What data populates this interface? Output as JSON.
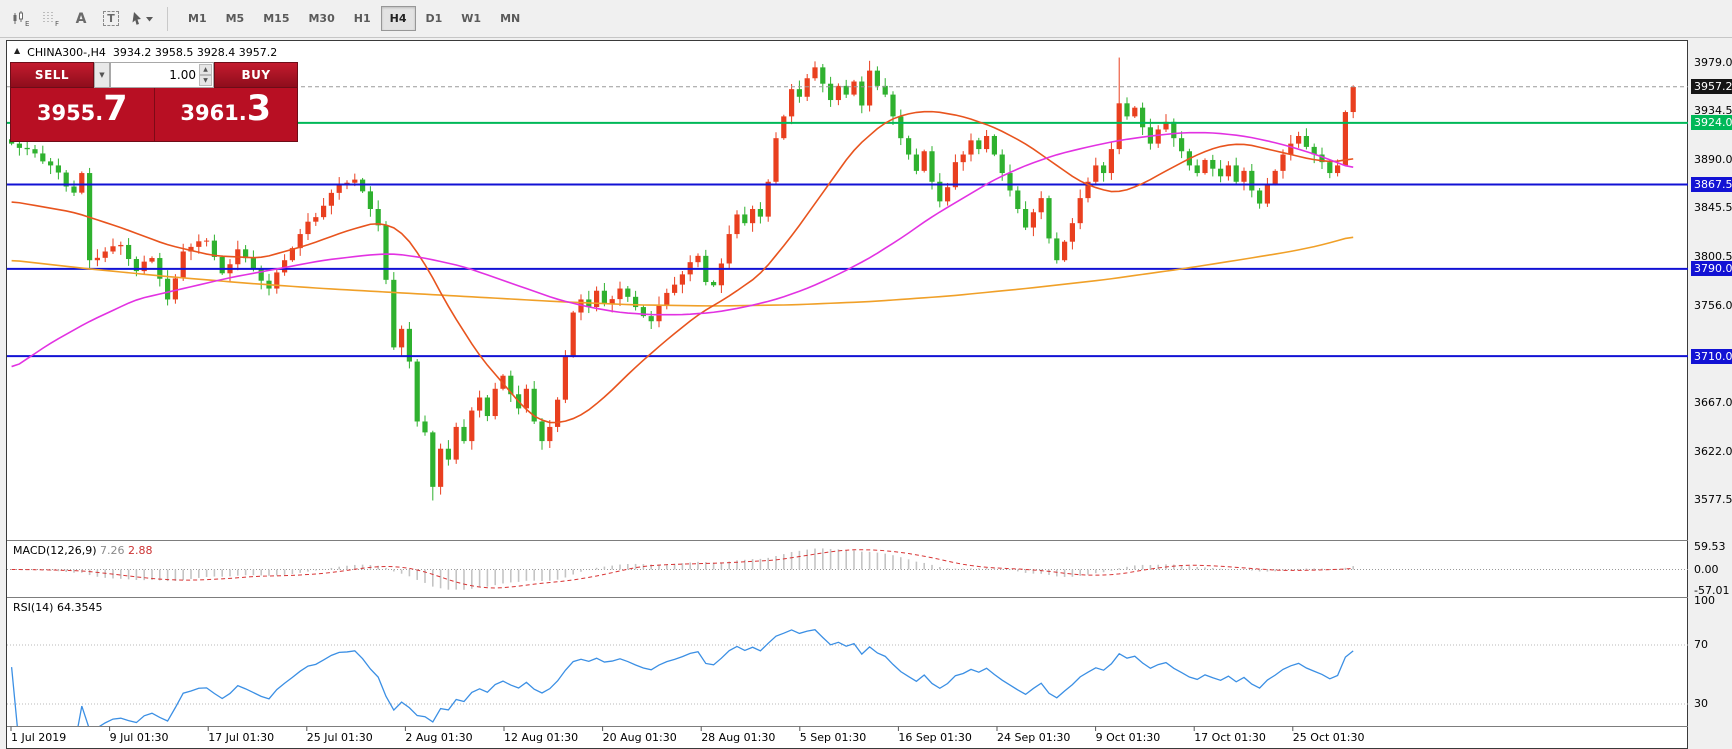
{
  "toolbar": {
    "icons": [
      {
        "name": "chart-style-icon",
        "sub": "E"
      },
      {
        "name": "grid-icon",
        "sub": "F"
      },
      {
        "name": "text-annotation-icon",
        "glyph": "A"
      },
      {
        "name": "text-box-icon",
        "glyph": "T"
      },
      {
        "name": "cursor-tool-icon"
      }
    ],
    "timeframes": [
      "M1",
      "M5",
      "M15",
      "M30",
      "H1",
      "H4",
      "D1",
      "W1",
      "MN"
    ],
    "active_timeframe": "H4"
  },
  "symbol_header": {
    "collapse_icon": "▲",
    "symbol": "CHINA300-,H4",
    "ohlc": "3934.2 3958.5 3928.4 3957.2"
  },
  "trade_panel": {
    "sell_label": "SELL",
    "buy_label": "BUY",
    "volume": "1.00",
    "sell_price_main": "3955.",
    "sell_price_big": "7",
    "buy_price_main": "3961.",
    "buy_price_big": "3"
  },
  "price_axis": {
    "labels": [
      {
        "text": "3979.0",
        "price": 3979.0
      },
      {
        "text": "3934.5",
        "price": 3934.5
      },
      {
        "text": "3890.0",
        "price": 3890.0
      },
      {
        "text": "3845.5",
        "price": 3845.5
      },
      {
        "text": "3800.5",
        "price": 3800.5
      },
      {
        "text": "3756.0",
        "price": 3756.0
      },
      {
        "text": "3667.0",
        "price": 3667.0
      },
      {
        "text": "3622.0",
        "price": 3622.0
      },
      {
        "text": "3577.5",
        "price": 3577.5
      }
    ],
    "tags": [
      {
        "text": "3957.2",
        "price": 3957.2,
        "style": "current"
      },
      {
        "text": "3924.0",
        "price": 3924.0,
        "style": "green"
      },
      {
        "text": "3867.5",
        "price": 3867.5,
        "style": "blue"
      },
      {
        "text": "3790.0",
        "price": 3790.0,
        "style": "blue"
      },
      {
        "text": "3710.0",
        "price": 3710.0,
        "style": "blue"
      }
    ]
  },
  "macd_panel": {
    "label": "MACD(12,26,9)",
    "value_main": "7.26",
    "value_signal": "2.88",
    "axis": [
      {
        "text": "59.53",
        "value": 59.53
      },
      {
        "text": "0.00",
        "value": 0
      },
      {
        "text": "-57.01",
        "value": -57.01
      }
    ]
  },
  "rsi_panel": {
    "label": "RSI(14)",
    "value": "64.3545",
    "axis": [
      {
        "text": "100",
        "value": 100
      },
      {
        "text": "70",
        "value": 70
      },
      {
        "text": "30",
        "value": 30
      }
    ],
    "levels": [
      70,
      30
    ]
  },
  "time_axis": {
    "labels": [
      "1 Jul 2019",
      "9 Jul 01:30",
      "17 Jul 01:30",
      "25 Jul 01:30",
      "2 Aug 01:30",
      "12 Aug 01:30",
      "20 Aug 01:30",
      "28 Aug 01:30",
      "5 Sep 01:30",
      "16 Sep 01:30",
      "24 Sep 01:30",
      "9 Oct 01:30",
      "17 Oct 01:30",
      "25 Oct 01:30"
    ]
  },
  "chart_data": {
    "type": "candlestick",
    "symbol": "CHINA300-",
    "timeframe": "H4",
    "last_ohlc": {
      "open": 3934.2,
      "high": 3958.5,
      "low": 3928.4,
      "close": 3957.2
    },
    "current_price": 3957.2,
    "candle_count": 173,
    "up_color": "#e93f1f",
    "down_color": "#2fb12f",
    "close_anchors": [
      [
        0,
        3905
      ],
      [
        3,
        3896
      ],
      [
        5,
        3885
      ],
      [
        8,
        3860
      ],
      [
        9,
        3878
      ],
      [
        10,
        3798
      ],
      [
        12,
        3806
      ],
      [
        14,
        3812
      ],
      [
        16,
        3788
      ],
      [
        18,
        3800
      ],
      [
        20,
        3762
      ],
      [
        22,
        3806
      ],
      [
        25,
        3816
      ],
      [
        27,
        3786
      ],
      [
        29,
        3808
      ],
      [
        31,
        3790
      ],
      [
        33,
        3772
      ],
      [
        35,
        3798
      ],
      [
        37,
        3822
      ],
      [
        40,
        3848
      ],
      [
        42,
        3868
      ],
      [
        44,
        3872
      ],
      [
        46,
        3845
      ],
      [
        47,
        3830
      ],
      [
        48,
        3780
      ],
      [
        49,
        3718
      ],
      [
        50,
        3735
      ],
      [
        51,
        3705
      ],
      [
        52,
        3650
      ],
      [
        53,
        3640
      ],
      [
        54,
        3590
      ],
      [
        55,
        3625
      ],
      [
        56,
        3615
      ],
      [
        57,
        3645
      ],
      [
        58,
        3632
      ],
      [
        59,
        3660
      ],
      [
        60,
        3672
      ],
      [
        61,
        3655
      ],
      [
        62,
        3680
      ],
      [
        63,
        3692
      ],
      [
        64,
        3675
      ],
      [
        65,
        3662
      ],
      [
        66,
        3680
      ],
      [
        67,
        3650
      ],
      [
        68,
        3632
      ],
      [
        69,
        3645
      ],
      [
        70,
        3670
      ],
      [
        71,
        3710
      ],
      [
        72,
        3750
      ],
      [
        73,
        3762
      ],
      [
        74,
        3755
      ],
      [
        75,
        3770
      ],
      [
        76,
        3758
      ],
      [
        78,
        3772
      ],
      [
        80,
        3755
      ],
      [
        82,
        3742
      ],
      [
        84,
        3768
      ],
      [
        86,
        3785
      ],
      [
        88,
        3802
      ],
      [
        89,
        3778
      ],
      [
        90,
        3775
      ],
      [
        91,
        3795
      ],
      [
        92,
        3822
      ],
      [
        93,
        3840
      ],
      [
        94,
        3832
      ],
      [
        95,
        3845
      ],
      [
        96,
        3838
      ],
      [
        97,
        3870
      ],
      [
        98,
        3910
      ],
      [
        99,
        3930
      ],
      [
        100,
        3955
      ],
      [
        101,
        3948
      ],
      [
        102,
        3965
      ],
      [
        103,
        3975
      ],
      [
        104,
        3960
      ],
      [
        105,
        3945
      ],
      [
        106,
        3958
      ],
      [
        107,
        3950
      ],
      [
        108,
        3962
      ],
      [
        109,
        3940
      ],
      [
        110,
        3972
      ],
      [
        111,
        3958
      ],
      [
        112,
        3950
      ],
      [
        113,
        3930
      ],
      [
        114,
        3910
      ],
      [
        115,
        3895
      ],
      [
        116,
        3880
      ],
      [
        117,
        3898
      ],
      [
        118,
        3870
      ],
      [
        119,
        3852
      ],
      [
        120,
        3865
      ],
      [
        121,
        3888
      ],
      [
        122,
        3895
      ],
      [
        123,
        3908
      ],
      [
        124,
        3900
      ],
      [
        125,
        3912
      ],
      [
        126,
        3895
      ],
      [
        127,
        3878
      ],
      [
        128,
        3862
      ],
      [
        129,
        3845
      ],
      [
        130,
        3828
      ],
      [
        131,
        3842
      ],
      [
        132,
        3855
      ],
      [
        133,
        3818
      ],
      [
        134,
        3798
      ],
      [
        135,
        3815
      ],
      [
        136,
        3832
      ],
      [
        137,
        3855
      ],
      [
        138,
        3870
      ],
      [
        139,
        3885
      ],
      [
        140,
        3878
      ],
      [
        141,
        3900
      ],
      [
        142,
        3942
      ],
      [
        143,
        3930
      ],
      [
        144,
        3938
      ],
      [
        145,
        3920
      ],
      [
        146,
        3905
      ],
      [
        147,
        3918
      ],
      [
        148,
        3925
      ],
      [
        149,
        3910
      ],
      [
        150,
        3898
      ],
      [
        151,
        3885
      ],
      [
        152,
        3878
      ],
      [
        153,
        3890
      ],
      [
        154,
        3882
      ],
      [
        155,
        3875
      ],
      [
        156,
        3885
      ],
      [
        157,
        3870
      ],
      [
        158,
        3880
      ],
      [
        159,
        3862
      ],
      [
        160,
        3850
      ],
      [
        161,
        3868
      ],
      [
        162,
        3880
      ],
      [
        163,
        3895
      ],
      [
        164,
        3905
      ],
      [
        165,
        3912
      ],
      [
        166,
        3902
      ],
      [
        167,
        3895
      ],
      [
        168,
        3888
      ],
      [
        169,
        3878
      ],
      [
        170,
        3885
      ],
      [
        171,
        3934
      ],
      [
        172,
        3957
      ]
    ],
    "wick_overrides": {
      "20": {
        "low": 3756.5
      },
      "54": {
        "low": 3577.5
      },
      "103": {
        "high": 3980.5
      },
      "110": {
        "high": 3981
      },
      "142": {
        "high": 3984
      },
      "171": {
        "low": 3886
      },
      "172": {
        "high": 3958.5,
        "low": 3928.4
      }
    },
    "h_lines": [
      {
        "price": 3924.0,
        "color": "#00b858",
        "width": 2
      },
      {
        "price": 3867.5,
        "color": "#1212d4",
        "width": 2
      },
      {
        "price": 3790.0,
        "color": "#1212d4",
        "width": 2
      },
      {
        "price": 3710.0,
        "color": "#1212d4",
        "width": 2
      }
    ],
    "moving_averages": [
      {
        "name": "slow-ma",
        "color": "#f0a028",
        "anchors": [
          [
            0,
            3798
          ],
          [
            10,
            3790
          ],
          [
            20,
            3783
          ],
          [
            30,
            3777
          ],
          [
            40,
            3772
          ],
          [
            50,
            3768
          ],
          [
            60,
            3764
          ],
          [
            70,
            3760
          ],
          [
            80,
            3757
          ],
          [
            90,
            3756
          ],
          [
            100,
            3757
          ],
          [
            110,
            3760
          ],
          [
            120,
            3765
          ],
          [
            130,
            3772
          ],
          [
            140,
            3780
          ],
          [
            150,
            3790
          ],
          [
            158,
            3799
          ],
          [
            164,
            3806
          ],
          [
            168,
            3812
          ],
          [
            172,
            3820
          ]
        ]
      },
      {
        "name": "fast-ma",
        "color": "#e8541e",
        "anchors": [
          [
            0,
            3852
          ],
          [
            8,
            3842
          ],
          [
            14,
            3828
          ],
          [
            20,
            3812
          ],
          [
            26,
            3802
          ],
          [
            32,
            3800
          ],
          [
            38,
            3812
          ],
          [
            43,
            3825
          ],
          [
            47,
            3833
          ],
          [
            50,
            3825
          ],
          [
            53,
            3795
          ],
          [
            56,
            3755
          ],
          [
            60,
            3710
          ],
          [
            63,
            3685
          ],
          [
            66,
            3660
          ],
          [
            68,
            3650
          ],
          [
            70,
            3648
          ],
          [
            73,
            3655
          ],
          [
            76,
            3672
          ],
          [
            80,
            3700
          ],
          [
            84,
            3725
          ],
          [
            88,
            3748
          ],
          [
            92,
            3765
          ],
          [
            96,
            3785
          ],
          [
            100,
            3820
          ],
          [
            104,
            3860
          ],
          [
            108,
            3900
          ],
          [
            112,
            3925
          ],
          [
            115,
            3933
          ],
          [
            118,
            3935
          ],
          [
            122,
            3930
          ],
          [
            126,
            3920
          ],
          [
            130,
            3905
          ],
          [
            134,
            3885
          ],
          [
            137,
            3870
          ],
          [
            140,
            3862
          ],
          [
            142,
            3860
          ],
          [
            145,
            3868
          ],
          [
            148,
            3880
          ],
          [
            152,
            3895
          ],
          [
            155,
            3903
          ],
          [
            158,
            3905
          ],
          [
            161,
            3900
          ],
          [
            164,
            3895
          ],
          [
            167,
            3890
          ],
          [
            170,
            3888
          ],
          [
            172,
            3892
          ]
        ]
      },
      {
        "name": "mid-ma",
        "color": "#e232e2",
        "anchors": [
          [
            0,
            3698
          ],
          [
            5,
            3722
          ],
          [
            10,
            3742
          ],
          [
            16,
            3762
          ],
          [
            22,
            3772
          ],
          [
            28,
            3782
          ],
          [
            34,
            3790
          ],
          [
            40,
            3798
          ],
          [
            46,
            3803
          ],
          [
            49,
            3804
          ],
          [
            53,
            3800
          ],
          [
            58,
            3792
          ],
          [
            62,
            3782
          ],
          [
            66,
            3772
          ],
          [
            70,
            3762
          ],
          [
            74,
            3755
          ],
          [
            78,
            3750
          ],
          [
            82,
            3748
          ],
          [
            86,
            3748
          ],
          [
            90,
            3750
          ],
          [
            94,
            3755
          ],
          [
            98,
            3762
          ],
          [
            102,
            3772
          ],
          [
            106,
            3785
          ],
          [
            110,
            3800
          ],
          [
            114,
            3818
          ],
          [
            118,
            3838
          ],
          [
            122,
            3855
          ],
          [
            126,
            3872
          ],
          [
            130,
            3885
          ],
          [
            134,
            3895
          ],
          [
            138,
            3902
          ],
          [
            142,
            3908
          ],
          [
            146,
            3912
          ],
          [
            150,
            3915
          ],
          [
            154,
            3915
          ],
          [
            158,
            3912
          ],
          [
            162,
            3906
          ],
          [
            165,
            3900
          ],
          [
            168,
            3893
          ],
          [
            172,
            3882
          ]
        ]
      }
    ],
    "indicators": [
      {
        "type": "macd",
        "params": [
          12,
          26,
          9
        ],
        "current": [
          7.26,
          2.88
        ],
        "axis_max": 59.53,
        "axis_min": -57.01,
        "histogram_color": "#c4c4c4",
        "signal_color": "#d83434"
      },
      {
        "type": "rsi",
        "params": [
          14
        ],
        "current": 64.3545,
        "levels": [
          70,
          30
        ],
        "line_color": "#3b8fe4"
      }
    ]
  }
}
